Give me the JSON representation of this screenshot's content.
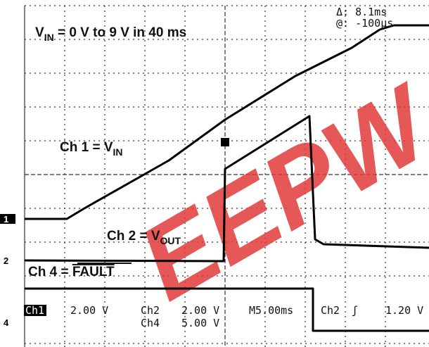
{
  "annotations": {
    "vin_range": {
      "main": "V",
      "sub": "IN",
      "rest": " = 0 V to 9 V in 40 ms"
    },
    "ch1": {
      "main": "Ch 1 = V",
      "sub": "IN"
    },
    "ch2": {
      "main": "Ch 2 = V",
      "sub": "OUT"
    },
    "ch4": {
      "main": "Ch 4 = ",
      "over": "FAULT"
    }
  },
  "cursor": {
    "delta": "Δ: 8.1ms",
    "at": "@: -100μs"
  },
  "markers": [
    "1",
    "2",
    "4"
  ],
  "status": {
    "ch1": "Ch1",
    "ch1_scale": "2.00 V",
    "ch2": "Ch2",
    "ch2_scale": "2.00 V",
    "ch4": "Ch4",
    "ch4_scale": "5.00 V",
    "time": "M5.00ms",
    "trig_ch": "Ch2",
    "trig_slope": "ʃ",
    "trig_level": "1.20 V"
  },
  "watermark": "EEPW"
}
